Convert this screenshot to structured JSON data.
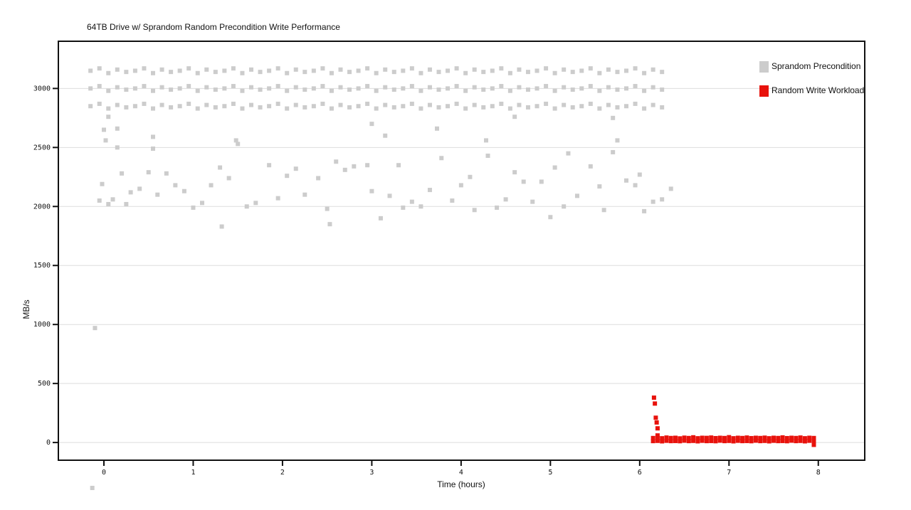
{
  "chart_data": {
    "type": "scatter",
    "title": "64TB Drive w/ Sprandom Random Precondition Write Performance",
    "xlabel": "Time (hours)",
    "ylabel": "MB/s",
    "xlim": [
      -0.51,
      8.52
    ],
    "ylim": [
      -150,
      3400
    ],
    "xticks": [
      0,
      1,
      2,
      3,
      4,
      5,
      6,
      7,
      8
    ],
    "yticks": [
      0,
      500,
      1000,
      1500,
      2000,
      2500,
      3000
    ],
    "grid": true,
    "legend": "upper right",
    "series": [
      {
        "name": "Sprandom Precondition",
        "color": "#cccccc",
        "x": [
          -0.15,
          -0.15,
          -0.15,
          -0.05,
          -0.05,
          -0.05,
          0.05,
          0.05,
          0.05,
          0.15,
          0.15,
          0.15,
          0.25,
          0.25,
          0.25,
          0.35,
          0.35,
          0.35,
          0.45,
          0.45,
          0.45,
          0.55,
          0.55,
          0.55,
          0.65,
          0.65,
          0.65,
          0.75,
          0.75,
          0.75,
          0.85,
          0.85,
          0.85,
          0.95,
          0.95,
          0.95,
          1.05,
          1.05,
          1.05,
          1.15,
          1.15,
          1.15,
          1.25,
          1.25,
          1.25,
          1.35,
          1.35,
          1.35,
          1.45,
          1.45,
          1.45,
          1.55,
          1.55,
          1.55,
          1.65,
          1.65,
          1.65,
          1.75,
          1.75,
          1.75,
          1.85,
          1.85,
          1.85,
          1.95,
          1.95,
          1.95,
          2.05,
          2.05,
          2.05,
          2.15,
          2.15,
          2.15,
          2.25,
          2.25,
          2.25,
          2.35,
          2.35,
          2.35,
          2.45,
          2.45,
          2.45,
          2.55,
          2.55,
          2.55,
          2.65,
          2.65,
          2.65,
          2.75,
          2.75,
          2.75,
          2.85,
          2.85,
          2.85,
          2.95,
          2.95,
          2.95,
          3.05,
          3.05,
          3.05,
          3.15,
          3.15,
          3.15,
          3.25,
          3.25,
          3.25,
          3.35,
          3.35,
          3.35,
          3.45,
          3.45,
          3.45,
          3.55,
          3.55,
          3.55,
          3.65,
          3.65,
          3.65,
          3.75,
          3.75,
          3.75,
          3.85,
          3.85,
          3.85,
          3.95,
          3.95,
          3.95,
          4.05,
          4.05,
          4.05,
          4.15,
          4.15,
          4.15,
          4.25,
          4.25,
          4.25,
          4.35,
          4.35,
          4.35,
          4.45,
          4.45,
          4.45,
          4.55,
          4.55,
          4.55,
          4.65,
          4.65,
          4.65,
          4.75,
          4.75,
          4.75,
          4.85,
          4.85,
          4.85,
          4.95,
          4.95,
          4.95,
          5.05,
          5.05,
          5.05,
          5.15,
          5.15,
          5.15,
          5.25,
          5.25,
          5.25,
          5.35,
          5.35,
          5.35,
          5.45,
          5.45,
          5.45,
          5.55,
          5.55,
          5.55,
          5.65,
          5.65,
          5.65,
          5.75,
          5.75,
          5.75,
          5.85,
          5.85,
          5.85,
          5.95,
          5.95,
          5.95,
          6.05,
          6.05,
          6.05,
          6.15,
          6.15,
          6.15,
          6.25,
          6.25,
          6.25,
          -0.1,
          -0.13,
          -0.05,
          -0.02,
          0.0,
          0.02,
          0.05,
          0.1,
          0.15,
          0.15,
          0.2,
          0.25,
          0.3,
          0.4,
          0.5,
          0.55,
          0.55,
          0.6,
          0.7,
          0.8,
          0.9,
          1.0,
          1.1,
          1.2,
          1.3,
          1.32,
          1.4,
          1.48,
          1.5,
          1.6,
          1.7,
          1.85,
          1.95,
          2.05,
          2.15,
          2.25,
          2.4,
          2.5,
          2.53,
          2.6,
          2.7,
          2.8,
          2.95,
          3.0,
          3.1,
          3.15,
          3.2,
          3.3,
          3.35,
          3.45,
          3.55,
          3.65,
          3.73,
          3.78,
          3.9,
          4.0,
          4.1,
          4.15,
          4.28,
          4.3,
          4.4,
          4.5,
          4.6,
          4.7,
          4.8,
          4.9,
          5.0,
          5.05,
          5.15,
          5.2,
          5.3,
          5.45,
          5.55,
          5.6,
          5.7,
          5.75,
          5.85,
          5.95,
          6.0,
          6.05,
          6.15,
          6.25,
          6.35,
          0.05,
          3.0,
          4.6,
          5.7
        ],
        "values": [
          3150,
          3000,
          2850,
          3170,
          3020,
          2870,
          3130,
          2980,
          2830,
          3160,
          3010,
          2860,
          3140,
          2990,
          2840,
          3150,
          3000,
          2850,
          3170,
          3020,
          2870,
          3130,
          2980,
          2830,
          3160,
          3010,
          2860,
          3140,
          2990,
          2840,
          3150,
          3000,
          2850,
          3170,
          3020,
          2870,
          3130,
          2980,
          2830,
          3160,
          3010,
          2860,
          3140,
          2990,
          2840,
          3150,
          3000,
          2850,
          3170,
          3020,
          2870,
          3130,
          2980,
          2830,
          3160,
          3010,
          2860,
          3140,
          2990,
          2840,
          3150,
          3000,
          2850,
          3170,
          3020,
          2870,
          3130,
          2980,
          2830,
          3160,
          3010,
          2860,
          3140,
          2990,
          2840,
          3150,
          3000,
          2850,
          3170,
          3020,
          2870,
          3130,
          2980,
          2830,
          3160,
          3010,
          2860,
          3140,
          2990,
          2840,
          3150,
          3000,
          2850,
          3170,
          3020,
          2870,
          3130,
          2980,
          2830,
          3160,
          3010,
          2860,
          3140,
          2990,
          2840,
          3150,
          3000,
          2850,
          3170,
          3020,
          2870,
          3130,
          2980,
          2830,
          3160,
          3010,
          2860,
          3140,
          2990,
          2840,
          3150,
          3000,
          2850,
          3170,
          3020,
          2870,
          3130,
          2980,
          2830,
          3160,
          3010,
          2860,
          3140,
          2990,
          2840,
          3150,
          3000,
          2850,
          3170,
          3020,
          2870,
          3130,
          2980,
          2830,
          3160,
          3010,
          2860,
          3140,
          2990,
          2840,
          3150,
          3000,
          2850,
          3170,
          3020,
          2870,
          3130,
          2980,
          2830,
          3160,
          3010,
          2860,
          3140,
          2990,
          2840,
          3150,
          3000,
          2850,
          3170,
          3020,
          2870,
          3130,
          2980,
          2830,
          3160,
          3010,
          2860,
          3140,
          2990,
          2840,
          3150,
          3000,
          2850,
          3170,
          3020,
          2870,
          3130,
          2980,
          2830,
          3160,
          3010,
          2860,
          3140,
          2990,
          2840,
          970,
          -385,
          2050,
          2190,
          2650,
          2560,
          2020,
          2060,
          2660,
          2500,
          2280,
          2020,
          2120,
          2150,
          2290,
          2590,
          2490,
          2100,
          2280,
          2180,
          2130,
          1990,
          2030,
          2180,
          2330,
          1830,
          2240,
          2560,
          2530,
          2000,
          2030,
          2350,
          2070,
          2260,
          2320,
          2100,
          2240,
          1980,
          1850,
          2380,
          2310,
          2340,
          2350,
          2130,
          1900,
          2600,
          2090,
          2350,
          1990,
          2040,
          2000,
          2140,
          2660,
          2410,
          2050,
          2180,
          2250,
          1970,
          2560,
          2430,
          1990,
          2060,
          2290,
          2210,
          2040,
          2210,
          1910,
          2330,
          2000,
          2450,
          2090,
          2340,
          2170,
          1970,
          2460,
          2560,
          2220,
          2180,
          2270,
          1960,
          2040,
          2060,
          2150,
          2760,
          2700,
          2760,
          2750
        ]
      },
      {
        "name": "Random Write Workload",
        "color": "#e8120c",
        "x": [
          6.16,
          6.17,
          6.18,
          6.19,
          6.2,
          6.2,
          6.15,
          6.15,
          6.2,
          6.2,
          6.25,
          6.25,
          6.3,
          6.3,
          6.35,
          6.35,
          6.4,
          6.4,
          6.45,
          6.45,
          6.5,
          6.5,
          6.55,
          6.55,
          6.6,
          6.6,
          6.65,
          6.65,
          6.7,
          6.7,
          6.75,
          6.75,
          6.8,
          6.8,
          6.85,
          6.85,
          6.9,
          6.9,
          6.95,
          6.95,
          7.0,
          7.0,
          7.05,
          7.05,
          7.1,
          7.1,
          7.15,
          7.15,
          7.2,
          7.2,
          7.25,
          7.25,
          7.3,
          7.3,
          7.35,
          7.35,
          7.4,
          7.4,
          7.45,
          7.45,
          7.5,
          7.5,
          7.55,
          7.55,
          7.6,
          7.6,
          7.65,
          7.65,
          7.7,
          7.7,
          7.75,
          7.75,
          7.8,
          7.8,
          7.85,
          7.85,
          7.9,
          7.9,
          7.95,
          7.95,
          7.95
        ],
        "values": [
          380,
          330,
          210,
          170,
          120,
          60,
          38,
          12,
          40,
          14,
          36,
          10,
          42,
          15,
          38,
          12,
          40,
          13,
          35,
          11,
          41,
          16,
          38,
          12,
          44,
          14,
          36,
          10,
          40,
          15,
          39,
          12,
          42,
          13,
          37,
          11,
          40,
          16,
          38,
          12,
          45,
          14,
          36,
          10,
          40,
          15,
          38,
          12,
          42,
          13,
          37,
          11,
          40,
          16,
          38,
          12,
          41,
          14,
          36,
          10,
          40,
          15,
          38,
          12,
          43,
          13,
          37,
          11,
          40,
          16,
          38,
          12,
          42,
          14,
          36,
          10,
          40,
          15,
          38,
          12,
          -20
        ]
      }
    ]
  }
}
